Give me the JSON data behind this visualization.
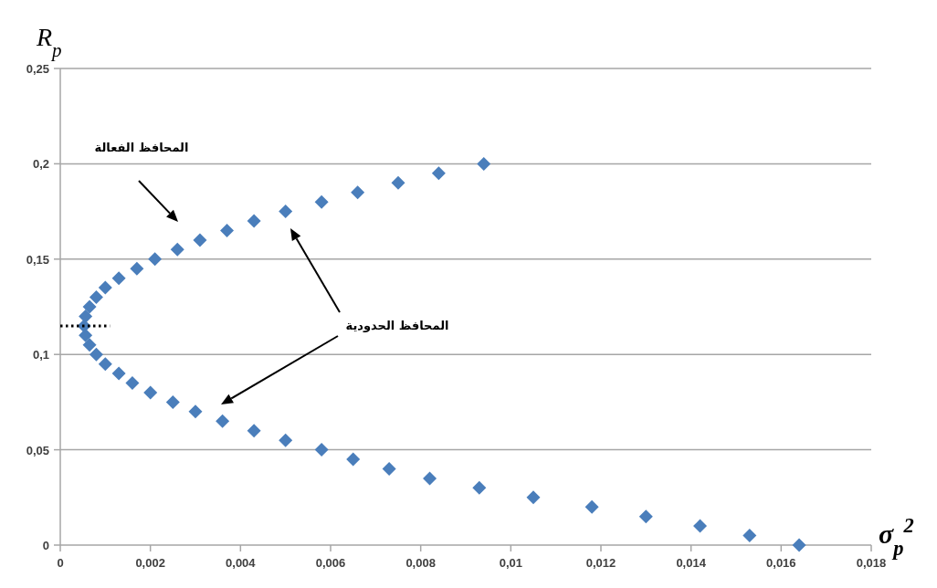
{
  "chart_data": {
    "type": "scatter",
    "xlabel": "σ$_{p}$$^{2}$",
    "ylabel": "R$_{p}$",
    "series": [
      {
        "color": "#4a7ebb",
        "marker": "diamond",
        "x": [
          0.0164,
          0.0153,
          0.0142,
          0.013,
          0.0118,
          0.0105,
          0.0093,
          0.0082,
          0.0073,
          0.0065,
          0.0058,
          0.005,
          0.0043,
          0.0036,
          0.003,
          0.0025,
          0.002,
          0.0016,
          0.0013,
          0.001,
          0.0008,
          0.00065,
          0.00056,
          0.00053,
          0.00056,
          0.00065,
          0.0008,
          0.001,
          0.0013,
          0.0017,
          0.0021,
          0.0026,
          0.0031,
          0.0037,
          0.0043,
          0.005,
          0.0058,
          0.0066,
          0.0075,
          0.0084,
          0.0094
        ],
        "values": [
          0,
          0.005,
          0.01,
          0.015,
          0.02,
          0.025,
          0.03,
          0.035,
          0.04,
          0.045,
          0.05,
          0.055,
          0.06,
          0.065,
          0.07,
          0.075,
          0.08,
          0.085,
          0.09,
          0.095,
          0.1,
          0.105,
          0.11,
          0.115,
          0.12,
          0.125,
          0.13,
          0.135,
          0.14,
          0.145,
          0.15,
          0.155,
          0.16,
          0.165,
          0.17,
          0.175,
          0.18,
          0.185,
          0.19,
          0.195,
          0.2
        ]
      },
      {
        "type": "line",
        "color": "#000000",
        "line_style": "dotted",
        "x": [
          0,
          0.0011
        ],
        "values": [
          0.115,
          0.115
        ]
      }
    ],
    "grid": "y",
    "xlim": [
      0,
      0.018
    ],
    "ylim": [
      0,
      0.25
    ],
    "xticks": [
      0,
      {
        "value": 0.002,
        "label": "0,002"
      },
      {
        "value": 0.004,
        "label": "0,004"
      },
      {
        "value": 0.006,
        "label": "0,006"
      },
      {
        "value": 0.008,
        "label": "0,008"
      },
      {
        "value": 0.01,
        "label": "0,01"
      },
      {
        "value": 0.012,
        "label": "0,012"
      },
      {
        "value": 0.014,
        "label": "0,014"
      },
      {
        "value": 0.016,
        "label": "0,016"
      },
      {
        "value": 0.018,
        "label": "0,018"
      }
    ],
    "yticks": [
      0,
      {
        "value": 0.05,
        "label": "0,05"
      },
      {
        "value": 0.1,
        "label": "0,1"
      },
      {
        "value": 0.15,
        "label": "0,15"
      },
      {
        "value": 0.2,
        "label": "0,2"
      },
      {
        "value": 0.25,
        "label": "0,25"
      }
    ],
    "annotations": [
      "المحافظ الفعالة",
      "المحافظ الحدودية"
    ]
  }
}
